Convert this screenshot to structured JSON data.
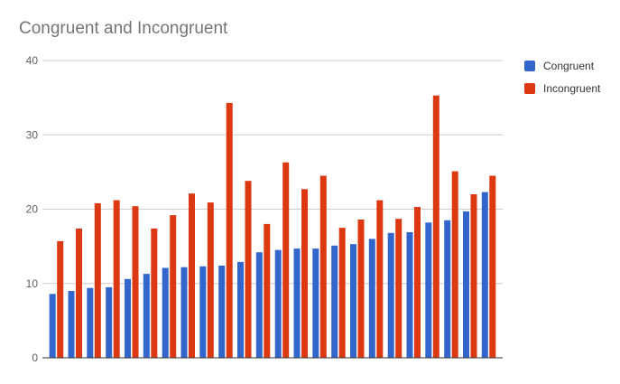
{
  "chart_data": {
    "type": "bar",
    "title": "Congruent and Incongruent",
    "xlabel": "",
    "ylabel": "",
    "ylim": [
      0,
      40
    ],
    "yticks": [
      "0",
      "10",
      "20",
      "30",
      "40"
    ],
    "grid": true,
    "legend_position": "right",
    "series": [
      {
        "name": "Congruent",
        "color": "#3366cc",
        "values": [
          8.6,
          9.0,
          9.4,
          9.5,
          10.6,
          11.3,
          12.1,
          12.2,
          12.3,
          12.4,
          12.9,
          14.2,
          14.5,
          14.7,
          14.7,
          15.1,
          15.3,
          16.0,
          16.8,
          16.9,
          18.2,
          18.5,
          19.7,
          22.3
        ]
      },
      {
        "name": "Incongruent",
        "color": "#dc3912",
        "values": [
          15.7,
          17.4,
          20.8,
          21.2,
          20.4,
          17.4,
          19.2,
          22.1,
          20.9,
          34.3,
          23.8,
          18.0,
          26.3,
          22.7,
          24.5,
          17.5,
          18.6,
          21.2,
          18.7,
          20.3,
          35.3,
          25.1,
          22.0,
          24.5
        ]
      }
    ]
  }
}
